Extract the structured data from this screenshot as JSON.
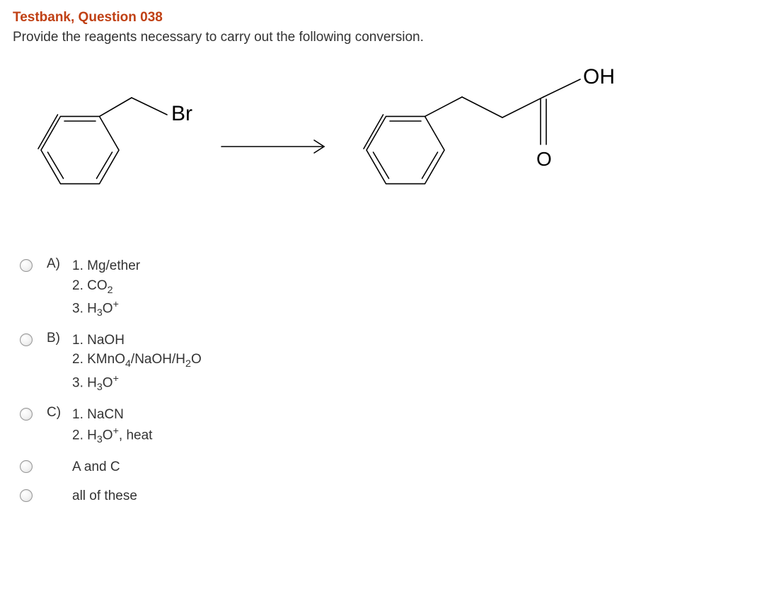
{
  "title": "Testbank, Question 038",
  "prompt": "Provide the reagents necessary to carry out the following conversion.",
  "colors": {
    "title": "#c04014",
    "text": "#333333",
    "stroke": "#000000",
    "background": "#ffffff"
  },
  "diagram": {
    "reactant_label": "Br",
    "product_label": "OH",
    "product_oxygen": "O",
    "bond_stroke_width": 1.6,
    "font_family": "Arial",
    "label_fontsize": 30,
    "atom_fontsize": 28
  },
  "options": [
    {
      "letter": "A)",
      "lines": [
        "1. Mg/ether",
        "2. CO<sub>2</sub>",
        "3. H<sub>3</sub>O<sup>+</sup>"
      ]
    },
    {
      "letter": "B)",
      "lines": [
        "1. NaOH",
        "2. KMnO<sub>4</sub>/NaOH/H<sub>2</sub>O",
        "3. H<sub>3</sub>O<sup>+</sup>"
      ]
    },
    {
      "letter": "C)",
      "lines": [
        "1. NaCN",
        "2. H<sub>3</sub>O<sup>+</sup>, heat"
      ]
    },
    {
      "letter": "",
      "lines": [
        "A and C"
      ]
    },
    {
      "letter": "",
      "lines": [
        "all of these"
      ]
    }
  ]
}
